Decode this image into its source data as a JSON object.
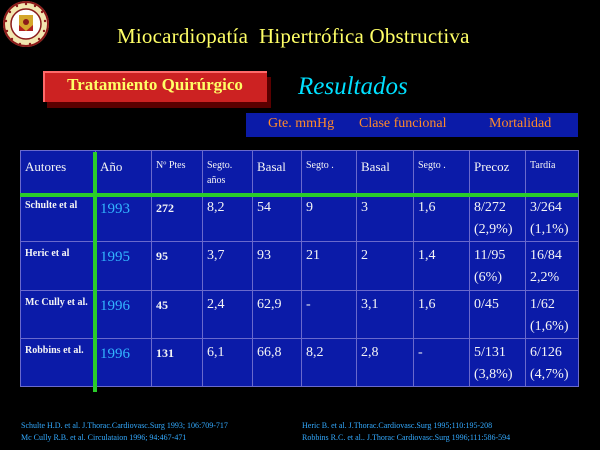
{
  "title": "Miocardiopatía  Hipertrófica Obstructiva",
  "treatment_label": "Tratamiento Quirúrgico",
  "results_label": "Resultados",
  "group_headers": {
    "gradient": "Gte. mmHg",
    "functional_class": "Clase funcional",
    "mortality": "Mortalidad"
  },
  "table": {
    "headers": [
      "Autores",
      "Año",
      "Nº Ptes",
      "Segto. años",
      "Basal",
      "Segto .",
      "Basal",
      "Segto .",
      "Precoz",
      "Tardía"
    ],
    "rows": [
      {
        "author": "Schulte et al",
        "year": "1993",
        "n": "272",
        "followup_years": "8,2",
        "gradient_basal": "54",
        "gradient_followup": "9",
        "class_basal": "3",
        "class_followup": "1,6",
        "early": "8/272",
        "early_pct": "(2,9%)",
        "late": "3/264",
        "late_pct": "(1,1%)"
      },
      {
        "author": "Heric et al",
        "year": "1995",
        "n": "95",
        "followup_years": "3,7",
        "gradient_basal": "93",
        "gradient_followup": "21",
        "class_basal": "2",
        "class_followup": "1,4",
        "early": "11/95",
        "early_pct": "(6%)",
        "late": "16/84",
        "late_pct": "2,2%"
      },
      {
        "author": "Mc Cully et al.",
        "year": "1996",
        "n": "45",
        "followup_years": "2,4",
        "gradient_basal": "62,9",
        "gradient_followup": "-",
        "class_basal": "3,1",
        "class_followup": "1,6",
        "early": "0/45",
        "early_pct": "",
        "late": "1/62",
        "late_pct": "(1,6%)"
      },
      {
        "author": "Robbins et al.",
        "year": "1996",
        "n": "131",
        "followup_years": "6,1",
        "gradient_basal": "66,8",
        "gradient_followup": "8,2",
        "class_basal": "2,8",
        "class_followup": "-",
        "early": "5/131",
        "early_pct": "(3,8%)",
        "late": "6/126",
        "late_pct": "(4,7%)"
      }
    ]
  },
  "references": {
    "left_1": "Schulte H.D. et al. J.Thorac.Cardiovasc.Surg 1993; 106:709-717",
    "left_2": "Mc Cully R.B. et al. Circulataion 1996; 94:467-471",
    "right_1": "Heric B. et al. J.Thorac.Cardiovasc.Surg 1995;110:195-208",
    "right_2": "Robbins R.C. et al.. J.Thorac Cardiovasc.Surg 1996;111:586-594"
  },
  "colors": {
    "title": "#ffff66",
    "results": "#00e0ff",
    "table_bg": "#0b1ba8",
    "divider": "#2acd2a",
    "header_text": "#ff8a2a",
    "year": "#33b5ff",
    "treatment_box": "#cc2222"
  },
  "icons": {
    "logo": "university-seal-icon"
  }
}
